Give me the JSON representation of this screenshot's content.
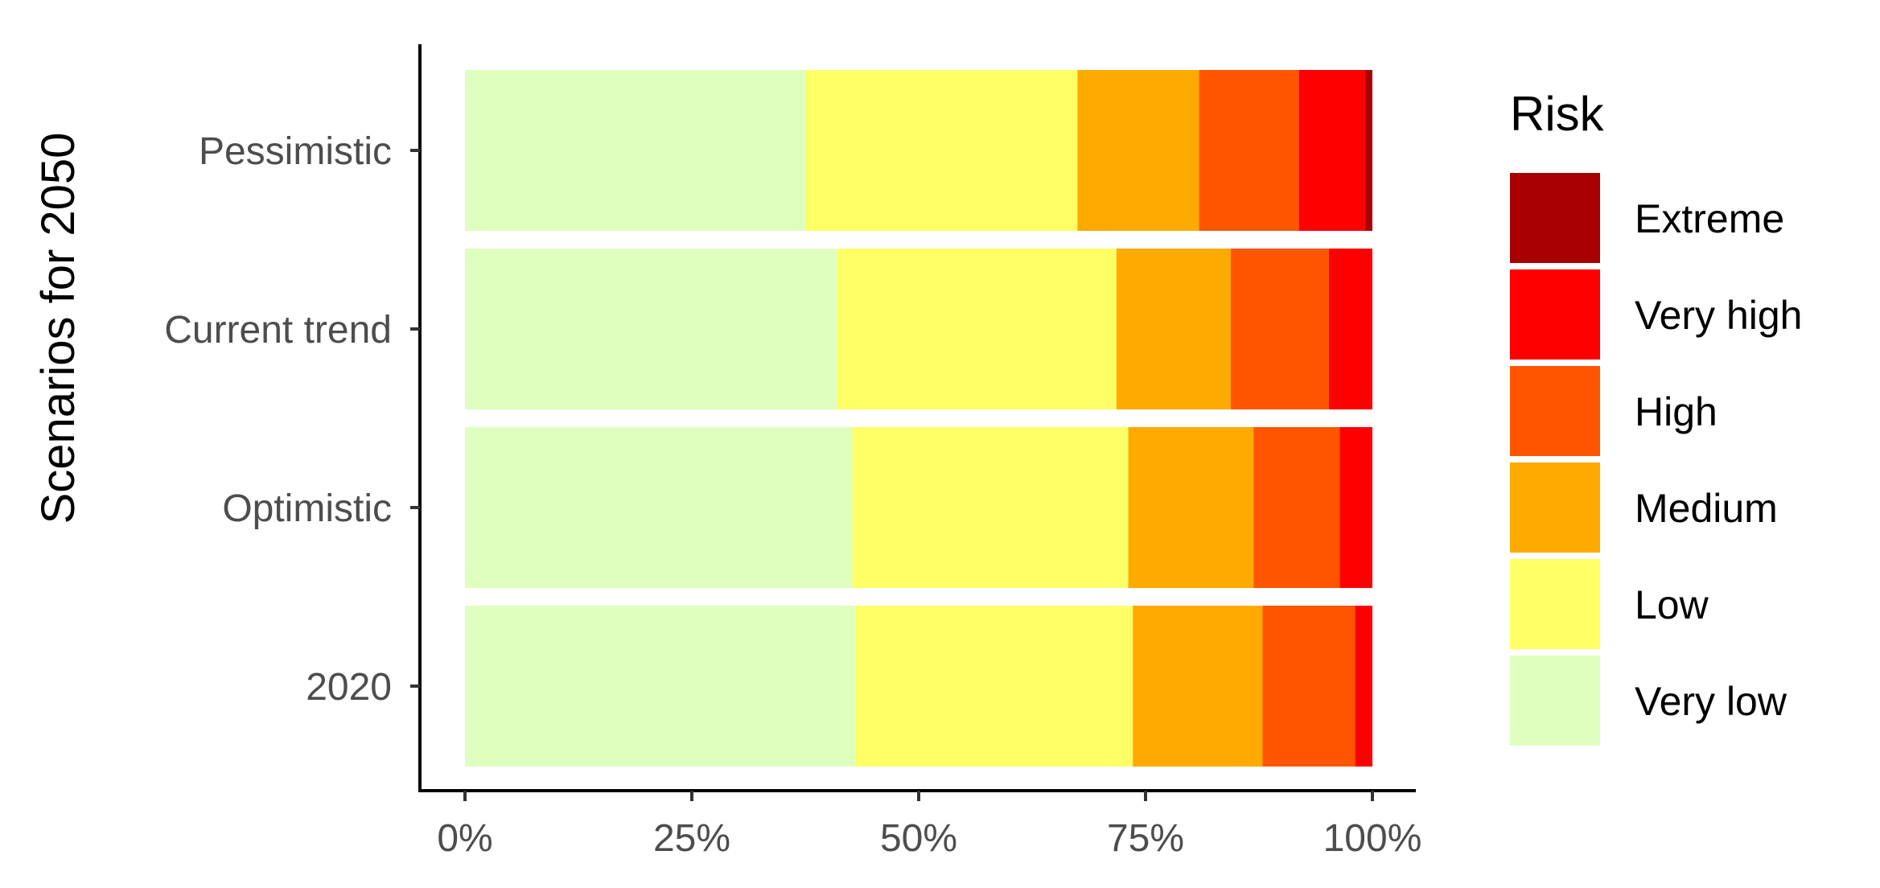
{
  "chart_data": {
    "type": "bar",
    "orientation": "horizontal",
    "stacked": "percent",
    "title": "",
    "xlabel": "",
    "ylabel": "Scenarios for 2050",
    "categories": [
      "Pessimistic",
      "Current trend",
      "Optimistic",
      "2020"
    ],
    "x_ticks": [
      "0%",
      "25%",
      "50%",
      "75%",
      "100%"
    ],
    "xlim": [
      0,
      100
    ],
    "series": [
      {
        "name": "Very low",
        "color": "#DFFFBE",
        "values": [
          37.5,
          41.0,
          42.7,
          43.0
        ]
      },
      {
        "name": "Low",
        "color": "#FFFF66",
        "values": [
          30.0,
          30.8,
          30.4,
          30.6
        ]
      },
      {
        "name": "Medium",
        "color": "#FFAA00",
        "values": [
          13.4,
          12.6,
          13.8,
          14.3
        ]
      },
      {
        "name": "High",
        "color": "#FF5500",
        "values": [
          11.0,
          10.8,
          9.5,
          10.2
        ]
      },
      {
        "name": "Very high",
        "color": "#FF0000",
        "values": [
          7.3,
          4.8,
          3.6,
          1.9
        ]
      },
      {
        "name": "Extreme",
        "color": "#A80000",
        "values": [
          0.8,
          0.0,
          0.0,
          0.0
        ]
      }
    ],
    "legend": {
      "title": "Risk",
      "placement": "right",
      "order": [
        "Extreme",
        "Very high",
        "High",
        "Medium",
        "Low",
        "Very low"
      ]
    },
    "grid": false
  }
}
